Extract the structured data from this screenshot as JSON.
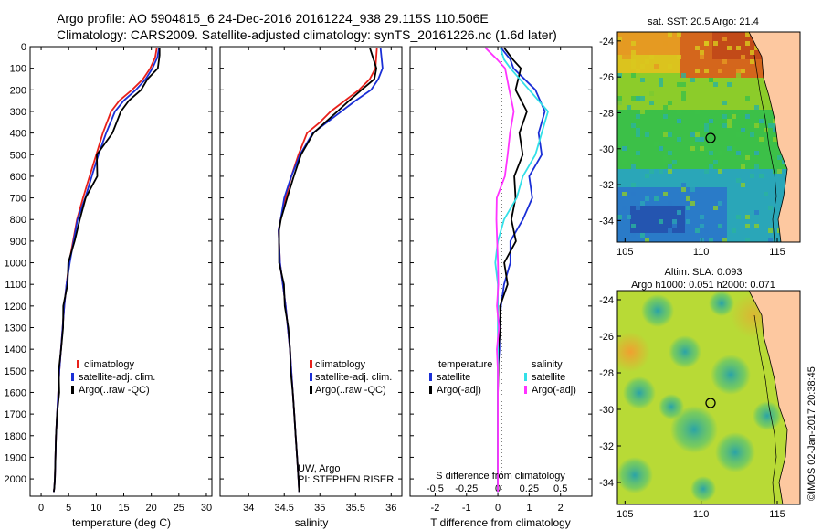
{
  "header": {
    "line1": "Argo profile: AO 5904815_6 24-Dec-2016 20161224_938 29.115S 110.506E",
    "line2": "Climatology: CARS2009. Satellite-adjusted climatology: synTS_20161226.nc (1.6d later)"
  },
  "colors": {
    "climatology": "#e8201a",
    "satellite": "#1a2fd6",
    "argo": "#000000",
    "argo_salinity": "#ff33ff",
    "satellite_salinity": "#33e0e8"
  },
  "chart_data": [
    {
      "type": "line",
      "id": "temperature",
      "xlabel": "temperature (deg C)",
      "ylabel": "",
      "xlim": [
        -2,
        31
      ],
      "ylim": [
        2080,
        0
      ],
      "xticks": [
        0,
        5,
        10,
        15,
        20,
        25,
        30
      ],
      "yticks": [
        0,
        100,
        200,
        300,
        400,
        500,
        600,
        700,
        800,
        900,
        1000,
        1100,
        1200,
        1300,
        1400,
        1500,
        1600,
        1700,
        1800,
        1900,
        2000
      ],
      "legend": [
        "climatology",
        "satellite-adj. clim.",
        "Argo(..raw -QC)"
      ],
      "series": [
        {
          "name": "climatology",
          "x": [
            21.0,
            20.7,
            19.8,
            18.5,
            16.5,
            14.2,
            12.7,
            11.2,
            10.0,
            8.8,
            7.6,
            6.5,
            5.8,
            5.1,
            4.6,
            4.2,
            3.9,
            3.6,
            3.3,
            3.1,
            2.9,
            2.7,
            2.6,
            2.5,
            2.4,
            2.3
          ],
          "y": [
            5,
            50,
            100,
            150,
            200,
            250,
            300,
            400,
            500,
            600,
            700,
            800,
            900,
            1000,
            1100,
            1200,
            1300,
            1400,
            1500,
            1600,
            1700,
            1800,
            1900,
            2000,
            2040,
            2060
          ]
        },
        {
          "name": "satellite-adj. clim.",
          "x": [
            21.4,
            21.1,
            20.2,
            19.0,
            17.2,
            15.0,
            13.4,
            11.8,
            10.4,
            9.2,
            8.0,
            6.6,
            5.9,
            5.2,
            4.6,
            4.2,
            3.9,
            3.6,
            3.3,
            3.1,
            2.9,
            2.7,
            2.6,
            2.5,
            2.4,
            2.3
          ],
          "y": [
            5,
            50,
            100,
            150,
            200,
            250,
            300,
            400,
            500,
            600,
            700,
            800,
            900,
            1000,
            1100,
            1200,
            1300,
            1400,
            1500,
            1600,
            1700,
            1800,
            1900,
            2000,
            2040,
            2060
          ]
        },
        {
          "name": "Argo(..raw -QC)",
          "x": [
            21.5,
            21.6,
            21.0,
            19.5,
            18.0,
            16.0,
            14.5,
            12.8,
            10.3,
            10.0,
            8.2,
            7.0,
            6.0,
            5.1,
            4.6,
            4.2,
            3.9,
            3.6,
            3.3,
            3.1,
            2.9,
            2.7,
            2.6,
            2.5,
            2.4,
            2.3
          ],
          "y": [
            5,
            40,
            100,
            150,
            200,
            250,
            300,
            400,
            500,
            600,
            700,
            800,
            900,
            1000,
            1100,
            1200,
            1300,
            1400,
            1500,
            1600,
            1700,
            1800,
            1900,
            2000,
            2040,
            2060
          ]
        }
      ]
    },
    {
      "type": "line",
      "id": "salinity",
      "xlabel": "salinity",
      "xlim": [
        33.6,
        36.15
      ],
      "ylim": [
        2080,
        0
      ],
      "xticks": [
        34,
        34.5,
        35,
        35.5,
        36
      ],
      "xticklabels": [
        "34",
        "34.5",
        "35",
        "35.5",
        "36"
      ],
      "legend": [
        "climatology",
        "satellite-adj. clim.",
        "Argo(..raw -QC)"
      ],
      "annotation": [
        "UW, Argo",
        "PI: STEPHEN RISER"
      ],
      "series": [
        {
          "name": "climatology",
          "x": [
            35.8,
            35.78,
            35.7,
            35.55,
            35.35,
            35.15,
            35.0,
            34.82,
            34.7,
            34.6,
            34.52,
            34.45,
            34.42,
            34.44,
            34.48,
            34.52,
            34.55,
            34.58,
            34.6,
            34.62,
            34.64,
            34.66,
            34.68,
            34.7,
            34.71
          ],
          "y": [
            5,
            100,
            150,
            200,
            250,
            300,
            350,
            400,
            500,
            600,
            700,
            800,
            850,
            1000,
            1100,
            1200,
            1300,
            1400,
            1500,
            1600,
            1700,
            1800,
            1900,
            2000,
            2060
          ]
        },
        {
          "name": "satellite-adj. clim.",
          "x": [
            35.85,
            35.88,
            35.82,
            35.72,
            35.5,
            35.3,
            35.1,
            34.9,
            34.72,
            34.6,
            34.5,
            34.45,
            34.42,
            34.44,
            34.48,
            34.52,
            34.55,
            34.58,
            34.6,
            34.62,
            34.64,
            34.66,
            34.68,
            34.7,
            34.71
          ],
          "y": [
            5,
            100,
            150,
            200,
            250,
            300,
            350,
            400,
            500,
            600,
            700,
            800,
            850,
            1000,
            1100,
            1200,
            1300,
            1400,
            1500,
            1600,
            1700,
            1800,
            1900,
            2000,
            2060
          ]
        },
        {
          "name": "Argo(..raw -QC)",
          "x": [
            35.7,
            35.8,
            35.75,
            35.6,
            35.4,
            35.25,
            35.08,
            34.9,
            34.75,
            34.62,
            34.55,
            34.45,
            34.42,
            34.44,
            34.48,
            34.52,
            34.55,
            34.58,
            34.6,
            34.62,
            34.64,
            34.66,
            34.68,
            34.7,
            34.71
          ],
          "y": [
            5,
            100,
            150,
            200,
            250,
            300,
            350,
            400,
            500,
            600,
            700,
            800,
            850,
            1000,
            1100,
            1200,
            1300,
            1400,
            1500,
            1600,
            1700,
            1800,
            1900,
            2000,
            2060
          ]
        }
      ]
    },
    {
      "type": "line",
      "id": "difference",
      "xlabel": "T difference from climatology",
      "xlabel_top": "S difference from climatology",
      "xlim": [
        -2.8,
        3.0
      ],
      "ylim": [
        2080,
        0
      ],
      "xticks": [
        -2,
        -1,
        0,
        1,
        2
      ],
      "xticks_s": [
        -0.5,
        -0.25,
        0,
        0.25,
        0.5
      ],
      "xticklabels_s": [
        "-0.5",
        "-0.25",
        "0",
        "0.25",
        "0.5"
      ],
      "legend": [
        {
          "group": "temperature",
          "items": [
            "satellite",
            "Argo(-adj)"
          ]
        },
        {
          "group": "salinity",
          "items": [
            "satellite",
            "Argo(-adj)"
          ]
        }
      ],
      "series": [
        {
          "name": "satellite",
          "group": "temperature",
          "x": [
            0.1,
            0.4,
            0.5,
            1.2,
            1.5,
            1.3,
            1.4,
            1.0,
            1.1,
            0.8,
            0.4,
            0.4,
            0.2,
            0.1,
            0.05,
            0.05,
            0.0,
            0.0,
            0.0,
            0.0,
            0.0,
            0.0,
            0.0
          ],
          "y": [
            5,
            60,
            100,
            200,
            300,
            400,
            500,
            600,
            700,
            800,
            900,
            1000,
            1100,
            1200,
            1300,
            1400,
            1500,
            1600,
            1700,
            1800,
            1900,
            2000,
            2060
          ]
        },
        {
          "name": "Argo(-adj)",
          "group": "temperature",
          "x": [
            0.2,
            0.5,
            0.7,
            0.6,
            0.9,
            0.7,
            0.8,
            0.5,
            0.6,
            0.4,
            0.6,
            0.2,
            0.3,
            0.1,
            0.05,
            0.05,
            0.0,
            0.0,
            0.0,
            0.0,
            0.0,
            0.0,
            0.0
          ],
          "y": [
            5,
            60,
            100,
            200,
            300,
            400,
            500,
            600,
            700,
            800,
            900,
            1000,
            1100,
            1200,
            1300,
            1400,
            1500,
            1600,
            1700,
            1800,
            1900,
            2000,
            2060
          ]
        },
        {
          "name": "satellite",
          "group": "salinity",
          "x": [
            0.02,
            0.05,
            0.1,
            0.25,
            0.4,
            0.35,
            0.3,
            0.2,
            0.15,
            0.05,
            0.0,
            -0.02,
            0.0,
            0.0,
            0.0,
            0.0,
            0.0,
            0.0,
            0.0,
            0.0,
            0.0,
            0.0
          ],
          "y": [
            5,
            60,
            100,
            200,
            300,
            400,
            500,
            600,
            700,
            800,
            900,
            1000,
            1100,
            1200,
            1300,
            1400,
            1500,
            1600,
            1700,
            1800,
            1900,
            2060
          ]
        },
        {
          "name": "Argo(-adj)",
          "group": "salinity",
          "x": [
            -0.1,
            0.0,
            0.05,
            0.1,
            0.12,
            0.1,
            0.08,
            0.05,
            0.0,
            -0.02,
            0.0,
            0.0,
            0.0,
            0.0,
            0.0,
            0.0,
            0.0,
            0.0,
            0.0,
            0.0,
            0.0,
            0.0
          ],
          "y": [
            5,
            60,
            100,
            200,
            300,
            400,
            500,
            600,
            700,
            800,
            900,
            1000,
            1100,
            1200,
            1300,
            1400,
            1500,
            1600,
            1700,
            1800,
            1900,
            2060
          ]
        }
      ]
    },
    {
      "type": "heatmap",
      "id": "sst_map",
      "title": "sat. SST: 20.5  Argo: 21.4",
      "xlim": [
        104.5,
        116.5
      ],
      "ylim": [
        -35.2,
        -23.5
      ],
      "xticks": [
        105,
        110,
        115
      ],
      "yticks": [
        -24,
        -26,
        -28,
        -30,
        -32,
        -34
      ],
      "marker": {
        "lon": 110.506,
        "lat": -29.115
      }
    },
    {
      "type": "heatmap",
      "id": "sla_map",
      "title": "Altim. SLA: 0.093",
      "subtitle": "Argo h1000: 0.051 h2000: 0.071",
      "xlim": [
        104.5,
        116.5
      ],
      "ylim": [
        -35.2,
        -23.5
      ],
      "xticks": [
        105,
        110,
        115
      ],
      "yticks": [
        -24,
        -26,
        -28,
        -30,
        -32,
        -34
      ],
      "marker": {
        "lon": 110.506,
        "lat": -29.115
      }
    }
  ],
  "credit": "©IMOS 02-Jan-2017 20:38:45"
}
